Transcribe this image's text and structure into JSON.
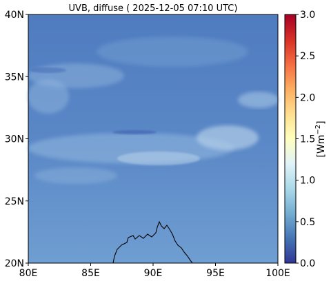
{
  "title": "UVB, diffuse ( 2025-12-05 07:10 UTC)",
  "map": {
    "lon_range": [
      80,
      100
    ],
    "lat_range": [
      20,
      40
    ],
    "x_ticks": [
      "80E",
      "85E",
      "90E",
      "95E",
      "100E"
    ],
    "y_ticks": [
      "20N",
      "25N",
      "30N",
      "35N",
      "40N"
    ],
    "field_color": "#5b87c6",
    "coastline_color": "#000000",
    "cloud_color": "#cfe3f1",
    "low_value_color": "#3f5fb0"
  },
  "colorbar": {
    "label": "[Wm",
    "label_exponent": "−2",
    "label_close": "]",
    "range": [
      0.0,
      3.0
    ],
    "ticks": [
      "0.0",
      "0.5",
      "1.0",
      "1.5",
      "2.0",
      "2.5",
      "3.0"
    ],
    "colormap": "RdYlBu_r",
    "colors": [
      "#313695",
      "#4575b4",
      "#74add1",
      "#abd9e9",
      "#e0f3f8",
      "#ffffbf",
      "#fee090",
      "#fdae61",
      "#f46d43",
      "#d73027",
      "#a50026"
    ]
  }
}
